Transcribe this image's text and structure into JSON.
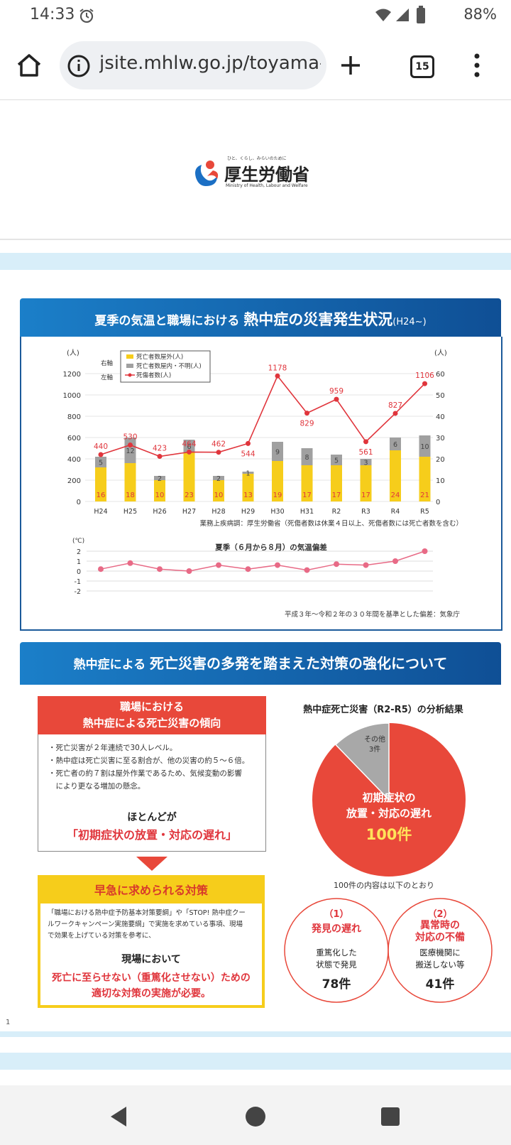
{
  "status_bar": {
    "time": "14:33",
    "battery": "88%"
  },
  "browser": {
    "url": "jsite.mhlw.go.jp/toyama-",
    "tab_count": "15"
  },
  "logo": {
    "tagline": "ひと、くらし、みらいのために",
    "name": "厚生労働省",
    "english": "Ministry of Health, Labour and Welfare"
  },
  "panel1": {
    "title_a": "夏季の気温と職場における ",
    "title_b": "熱中症の災害発生状況",
    "title_c": "(H24~)"
  },
  "chart_data": [
    {
      "type": "bar+line",
      "categories": [
        "H24",
        "H25",
        "H26",
        "H27",
        "H28",
        "H29",
        "H30",
        "H31",
        "R2",
        "R3",
        "R4",
        "R5"
      ],
      "series": [
        {
          "name": "死亡者数屋外(人)",
          "axis": "right",
          "values": [
            16,
            18,
            10,
            23,
            10,
            13,
            19,
            17,
            17,
            17,
            24,
            21
          ],
          "color": "#f6cd1b"
        },
        {
          "name": "死亡者数屋内・不明(人)",
          "axis": "right",
          "values": [
            5,
            12,
            2,
            6,
            2,
            1,
            9,
            8,
            5,
            3,
            6,
            10
          ],
          "color": "#a0a0a0"
        },
        {
          "name": "死傷者数(人)",
          "axis": "left",
          "values": [
            440,
            530,
            423,
            464,
            462,
            544,
            1178,
            829,
            959,
            561,
            827,
            1106
          ],
          "color": "#e0353c"
        }
      ],
      "left_axis": {
        "unit": "(人)",
        "ticks": [
          "1200",
          "1000",
          "800",
          "600",
          "400",
          "200",
          "0"
        ],
        "label": "左軸",
        "ylim": [
          0,
          1200
        ]
      },
      "right_axis": {
        "unit": "(人)",
        "ticks": [
          "60",
          "50",
          "40",
          "30",
          "20",
          "10",
          "0"
        ],
        "label": "右軸",
        "ylim": [
          0,
          60
        ]
      },
      "source": "業務上疾病調：厚生労働省（死傷者数は休業４日以上、死傷者数には死亡者数を含む）"
    },
    {
      "type": "line",
      "title": "夏季（６月から８月）の気温偏差",
      "unit": "(℃)",
      "categories": [
        "H24",
        "H25",
        "H26",
        "H27",
        "H28",
        "H29",
        "H30",
        "H31",
        "R2",
        "R3",
        "R4",
        "R5"
      ],
      "values": [
        0.2,
        0.8,
        0.2,
        0.0,
        0.6,
        0.2,
        0.6,
        0.1,
        0.7,
        0.6,
        1.0,
        2.0
      ],
      "ticks": [
        "2",
        "1",
        "0",
        "-1",
        "-2"
      ],
      "ylim": [
        -2,
        2
      ],
      "note": "平成３年～令和２年の３０年間を基準とした偏差：気象庁"
    },
    {
      "type": "pie",
      "title": "熱中症死亡災害（R2-R5）の分析結果",
      "slices": [
        {
          "label": "初期症状の放置・対応の遅れ",
          "value": 100,
          "display": "100件",
          "color": "#e8483a"
        },
        {
          "label": "その他",
          "value": 3,
          "display": "3件",
          "color": "#a8a8a8"
        }
      ]
    }
  ],
  "panel2": {
    "title_a": "熱中症による ",
    "title_b": "死亡災害の多発を踏まえた対策の強化について",
    "red_head_1": "職場における",
    "red_head_2": "熱中症による死亡災害の傾向",
    "bullets": [
      "・死亡災害が２年連続で30人レベル。",
      "・熱中症は死亡災害に至る割合が、他の災害の約５～６倍。",
      "・死亡者の約７割は屋外作業であるため、気候変動の影響",
      "　により更なる増加の懸念。"
    ],
    "mostly": "ほとんどが",
    "mostly_red": "「初期症状の放置・対応の遅れ」",
    "yellow_head": "早急に求められる対策",
    "yellow_text_1": "「職場における熱中症予防基本対策要綱」や「STOP! 熱中症クー",
    "yellow_text_2": "ルワークキャンペーン実施要綱」で実施を求めている事項、現場",
    "yellow_text_3": "で効果を上げている対策を参考に、",
    "onsite": "現場において",
    "final_1": "死亡に至らせない（重篤化させない）ための",
    "final_2": "適切な対策の実施が必要。",
    "breakdown_caption": "100件の内容は以下のとおり",
    "c1_num": "（1）",
    "c1_title": "発見の遅れ",
    "c1_desc_1": "重篤化した",
    "c1_desc_2": "状態で発見",
    "c1_count": "78件",
    "c2_num": "（2）",
    "c2_title_1": "異常時の",
    "c2_title_2": "対応の不備",
    "c2_desc_1": "医療機関に",
    "c2_desc_2": "搬送しない等",
    "c2_count": "41件",
    "page_number": "1"
  },
  "colors": {
    "accent_blue": "#1b7fc9",
    "red": "#e8483a",
    "yellow": "#f6cd1b"
  }
}
